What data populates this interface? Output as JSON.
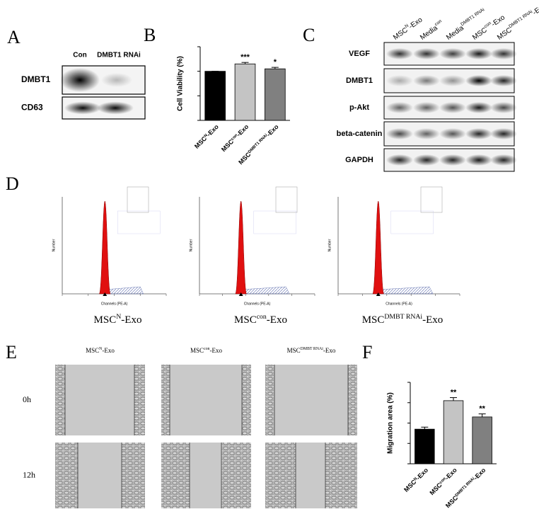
{
  "panel_letters": [
    "A",
    "B",
    "C",
    "D",
    "E",
    "F"
  ],
  "blot_a": {
    "columns": [
      "Con",
      "DMBT1 RNAi"
    ],
    "rows": [
      "DMBT1",
      "CD63"
    ]
  },
  "blot_c": {
    "columns": [
      [
        "MSC",
        "N",
        "-Exo"
      ],
      [
        "Media",
        "con"
      ],
      [
        "Media",
        "DMBT1 RNAi"
      ],
      [
        "MSC",
        "con",
        "-Exo"
      ],
      [
        "MSC",
        "DMBT1 RNAi",
        "-Exo"
      ]
    ],
    "rows": [
      "VEGF",
      "DMBT1",
      "p-Akt",
      "beta-catenin",
      "GAPDH"
    ]
  },
  "flow_d": {
    "x_label": "Channels (PE-A)",
    "y_label": "Number",
    "panels": [
      {
        "title": [
          "MSC",
          "N",
          "-Exo"
        ],
        "xticks": [
          0,
          40,
          80,
          120,
          160
        ]
      },
      {
        "title": [
          "MSC",
          "con",
          "-Exo"
        ],
        "xticks": [
          0,
          40,
          80,
          120,
          160,
          200
        ]
      },
      {
        "title": [
          "MSC",
          "DMBT RNAi",
          "-Exo"
        ],
        "xticks": [
          0,
          40,
          80,
          120,
          160,
          200
        ]
      }
    ]
  },
  "wound_e": {
    "columns": [
      [
        "MSC",
        "N",
        "-Exo"
      ],
      [
        "MSC",
        "con",
        "-Exo"
      ],
      [
        "MSC",
        "DMBT RNAi",
        "-Exo"
      ]
    ],
    "rows": [
      "0h",
      "12h"
    ]
  },
  "chart_data": [
    {
      "type": "bar",
      "y_label": "Cell Viability (%)",
      "categories": [
        [
          "MSC",
          "N",
          "-Exo"
        ],
        [
          "MSC",
          "con",
          "-Exo"
        ],
        [
          "MSC",
          "DMBT1 RNAi",
          "-Exo"
        ]
      ],
      "values": [
        100,
        115,
        105
      ],
      "errors": [
        0,
        3,
        3
      ],
      "annotations": [
        null,
        "***",
        "*"
      ],
      "colors": [
        "#000000",
        "#c4c4c4",
        "#808080"
      ],
      "ylim": [
        0,
        150
      ],
      "yticks": [
        0,
        50,
        100,
        150
      ]
    },
    {
      "type": "bar",
      "y_label": "Migration area (%)",
      "categories": [
        [
          "MSC",
          "N",
          "-Exo"
        ],
        [
          "MSC",
          "con",
          "-Exo"
        ],
        [
          "MSC",
          "DMBT1 RNAi",
          "-Exo"
        ]
      ],
      "values": [
        34,
        62,
        46
      ],
      "errors": [
        2,
        3,
        3
      ],
      "annotations": [
        null,
        "**",
        "**"
      ],
      "colors": [
        "#000000",
        "#c4c4c4",
        "#808080"
      ],
      "ylim": [
        0,
        80
      ],
      "yticks": [
        0,
        20,
        40,
        60,
        80
      ]
    }
  ]
}
